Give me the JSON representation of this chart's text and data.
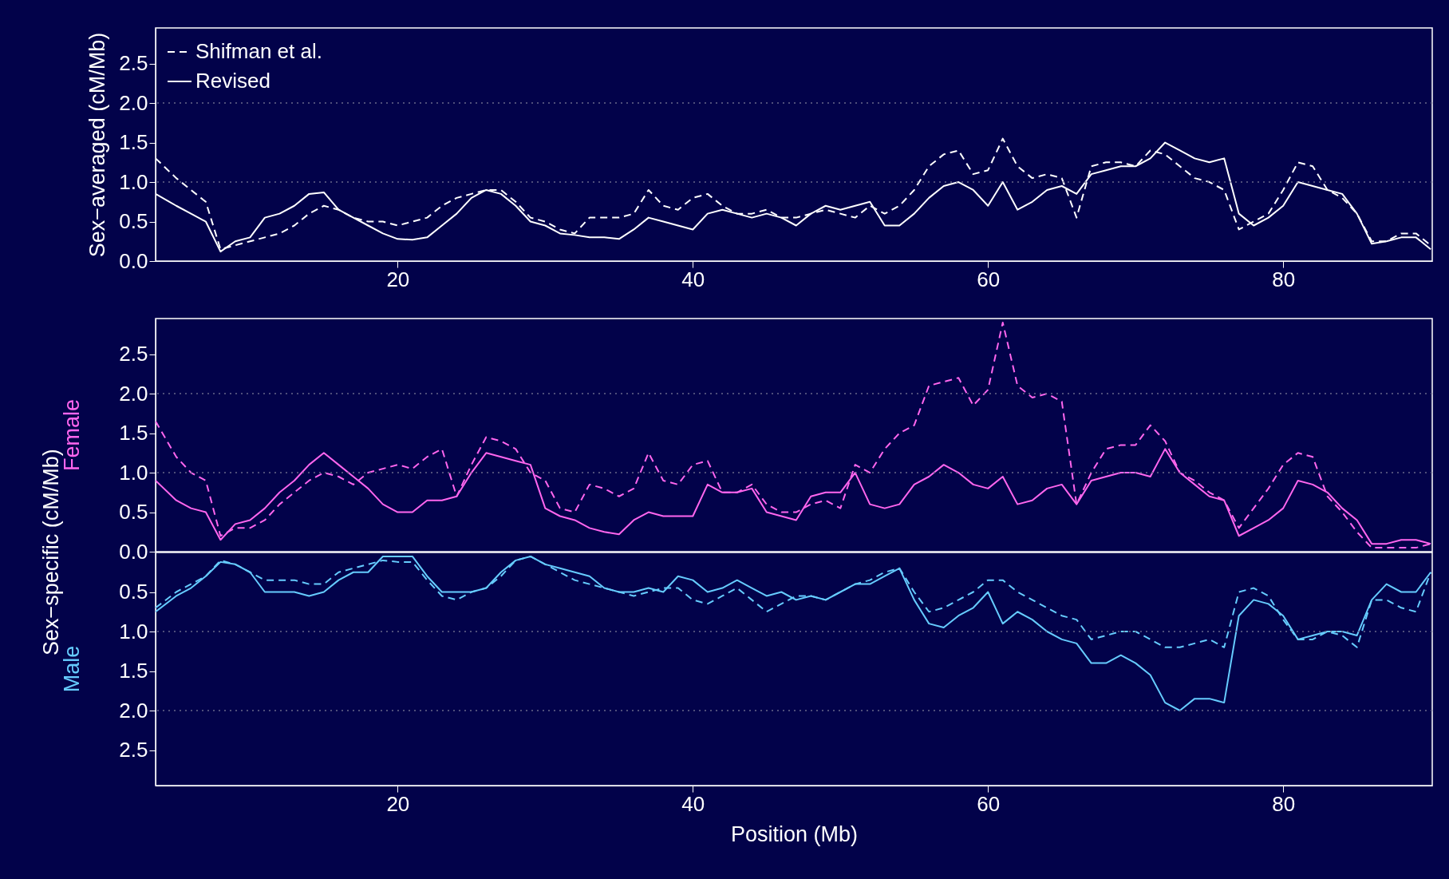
{
  "chart_data": [
    {
      "type": "line",
      "ylabel": "Sex−averaged (cM/Mb)",
      "legend": "top left",
      "xlim": [
        3.6,
        90.1
      ],
      "xticks": [
        20,
        40,
        60,
        80
      ],
      "ylim": [
        0,
        2.95
      ],
      "yticks": [
        {
          "value": 0,
          "label": "0.0"
        },
        0.5,
        {
          "value": 1,
          "label": "1.0"
        },
        1.5,
        {
          "value": 2,
          "label": "2.0"
        },
        2.5
      ],
      "ref_lines": [
        {
          "axis": "y",
          "value": 1,
          "line_style": "dotted",
          "color": "#6a6a8a"
        },
        {
          "axis": "y",
          "value": 2,
          "line_style": "dotted",
          "color": "#6a6a8a"
        }
      ],
      "x": [
        3.6,
        5,
        6,
        7,
        8,
        9,
        10,
        11,
        12,
        13,
        14,
        15,
        16,
        17,
        18,
        19,
        20,
        21,
        22,
        23,
        24,
        25,
        26,
        27,
        28,
        29,
        30,
        31,
        32,
        33,
        34,
        35,
        36,
        37,
        38,
        39,
        40,
        41,
        42,
        43,
        44,
        45,
        46,
        47,
        48,
        49,
        50,
        51,
        52,
        53,
        54,
        55,
        56,
        57,
        58,
        59,
        60,
        61,
        62,
        63,
        64,
        65,
        66,
        67,
        68,
        69,
        70,
        71,
        72,
        73,
        74,
        75,
        76,
        77,
        78,
        79,
        80,
        81,
        82,
        83,
        84,
        85,
        86,
        87,
        88,
        89,
        90
      ],
      "series": [
        {
          "name": "Shifman et al.",
          "color": "#ffffff",
          "line_style": "dashed",
          "values": [
            1.3,
            1.05,
            0.9,
            0.75,
            0.15,
            0.2,
            0.25,
            0.3,
            0.35,
            0.45,
            0.6,
            0.7,
            0.65,
            0.55,
            0.5,
            0.5,
            0.45,
            0.5,
            0.55,
            0.7,
            0.8,
            0.85,
            0.9,
            0.9,
            0.75,
            0.55,
            0.5,
            0.4,
            0.35,
            0.55,
            0.55,
            0.55,
            0.6,
            0.9,
            0.7,
            0.65,
            0.8,
            0.85,
            0.7,
            0.6,
            0.6,
            0.65,
            0.55,
            0.55,
            0.6,
            0.65,
            0.6,
            0.55,
            0.7,
            0.6,
            0.7,
            0.9,
            1.2,
            1.35,
            1.4,
            1.1,
            1.15,
            1.55,
            1.2,
            1.05,
            1.1,
            1.05,
            0.55,
            1.2,
            1.25,
            1.25,
            1.2,
            1.4,
            1.35,
            1.2,
            1.05,
            1.0,
            0.9,
            0.4,
            0.5,
            0.6,
            0.9,
            1.25,
            1.2,
            0.9,
            0.8,
            0.6,
            0.25,
            0.25,
            0.35,
            0.35,
            0.2
          ]
        },
        {
          "name": "Revised",
          "color": "#ffffff",
          "line_style": "solid",
          "values": [
            0.85,
            0.7,
            0.6,
            0.5,
            0.12,
            0.25,
            0.3,
            0.55,
            0.6,
            0.7,
            0.85,
            0.87,
            0.65,
            0.55,
            0.45,
            0.35,
            0.28,
            0.27,
            0.3,
            0.45,
            0.6,
            0.8,
            0.9,
            0.85,
            0.7,
            0.5,
            0.45,
            0.35,
            0.33,
            0.3,
            0.3,
            0.28,
            0.4,
            0.55,
            0.5,
            0.45,
            0.4,
            0.6,
            0.65,
            0.6,
            0.55,
            0.6,
            0.55,
            0.45,
            0.6,
            0.7,
            0.65,
            0.7,
            0.75,
            0.45,
            0.45,
            0.6,
            0.8,
            0.95,
            1.0,
            0.9,
            0.7,
            1.0,
            0.65,
            0.75,
            0.9,
            0.95,
            0.85,
            1.1,
            1.15,
            1.2,
            1.2,
            1.3,
            1.5,
            1.4,
            1.3,
            1.25,
            1.3,
            0.6,
            0.45,
            0.55,
            0.7,
            1.0,
            0.95,
            0.9,
            0.85,
            0.6,
            0.22,
            0.25,
            0.3,
            0.3,
            0.15
          ]
        }
      ]
    },
    {
      "type": "line",
      "ylabel": "Sex−specific (cM/Mb)",
      "annotations": [
        "Female"
      ],
      "tick_labels": "y",
      "xlim": [
        3.6,
        90.1
      ],
      "ylim": [
        0,
        2.95
      ],
      "yticks": [
        {
          "value": 0,
          "label": "0.0"
        },
        0.5,
        {
          "value": 1,
          "label": "1.0"
        },
        1.5,
        {
          "value": 2,
          "label": "2.0"
        },
        2.5
      ],
      "ref_lines": [
        {
          "axis": "y",
          "value": 1,
          "line_style": "dotted",
          "color": "#6a6a8a"
        },
        {
          "axis": "y",
          "value": 2,
          "line_style": "dotted",
          "color": "#6a6a8a"
        }
      ],
      "x": [
        3.6,
        5,
        6,
        7,
        8,
        9,
        10,
        11,
        12,
        13,
        14,
        15,
        16,
        17,
        18,
        19,
        20,
        21,
        22,
        23,
        24,
        25,
        26,
        27,
        28,
        29,
        30,
        31,
        32,
        33,
        34,
        35,
        36,
        37,
        38,
        39,
        40,
        41,
        42,
        43,
        44,
        45,
        46,
        47,
        48,
        49,
        50,
        51,
        52,
        53,
        54,
        55,
        56,
        57,
        58,
        59,
        60,
        61,
        62,
        63,
        64,
        65,
        66,
        67,
        68,
        69,
        70,
        71,
        72,
        73,
        74,
        75,
        76,
        77,
        78,
        79,
        80,
        81,
        82,
        83,
        84,
        85,
        86,
        87,
        88,
        89,
        90
      ],
      "series": [
        {
          "color": "#ff66ee",
          "line_style": "solid",
          "values": [
            0.9,
            0.65,
            0.55,
            0.5,
            0.15,
            0.35,
            0.4,
            0.55,
            0.75,
            0.9,
            1.1,
            1.25,
            1.1,
            0.95,
            0.8,
            0.6,
            0.5,
            0.5,
            0.65,
            0.65,
            0.7,
            1.0,
            1.25,
            1.2,
            1.15,
            1.1,
            0.55,
            0.45,
            0.4,
            0.3,
            0.25,
            0.22,
            0.4,
            0.5,
            0.45,
            0.45,
            0.45,
            0.85,
            0.75,
            0.75,
            0.8,
            0.5,
            0.45,
            0.4,
            0.7,
            0.75,
            0.75,
            1.0,
            0.6,
            0.55,
            0.6,
            0.85,
            0.95,
            1.1,
            1.0,
            0.85,
            0.8,
            0.95,
            0.6,
            0.65,
            0.8,
            0.85,
            0.6,
            0.9,
            0.95,
            1.0,
            1.0,
            0.95,
            1.3,
            1.0,
            0.85,
            0.7,
            0.65,
            0.2,
            0.3,
            0.4,
            0.55,
            0.9,
            0.85,
            0.75,
            0.55,
            0.4,
            0.1,
            0.1,
            0.15,
            0.15,
            0.1
          ]
        },
        {
          "color": "#ff66ee",
          "line_style": "dashed",
          "values": [
            1.65,
            1.2,
            1.0,
            0.9,
            0.2,
            0.3,
            0.3,
            0.4,
            0.6,
            0.75,
            0.9,
            1.0,
            0.95,
            0.85,
            1.0,
            1.05,
            1.1,
            1.05,
            1.2,
            1.3,
            0.7,
            1.1,
            1.45,
            1.4,
            1.3,
            1.0,
            0.9,
            0.55,
            0.5,
            0.85,
            0.8,
            0.7,
            0.8,
            1.25,
            0.9,
            0.85,
            1.1,
            1.15,
            0.75,
            0.75,
            0.85,
            0.6,
            0.5,
            0.5,
            0.6,
            0.65,
            0.55,
            1.1,
            1.0,
            1.3,
            1.5,
            1.6,
            2.1,
            2.15,
            2.2,
            1.85,
            2.05,
            2.9,
            2.1,
            1.95,
            2.0,
            1.9,
            0.6,
            1.0,
            1.3,
            1.35,
            1.35,
            1.6,
            1.4,
            1.0,
            0.9,
            0.75,
            0.65,
            0.3,
            0.55,
            0.8,
            1.1,
            1.25,
            1.2,
            0.7,
            0.5,
            0.25,
            0.05,
            0.05,
            0.05,
            0.05,
            0.1
          ]
        }
      ]
    },
    {
      "type": "line",
      "xlabel": "Position (Mb)",
      "annotations": [
        "Male"
      ],
      "xlim": [
        3.6,
        90.1
      ],
      "xticks": [
        20,
        40,
        60,
        80
      ],
      "ylim": [
        2.95,
        0
      ],
      "yticks": [
        0.5,
        {
          "value": 1,
          "label": "1.0"
        },
        1.5,
        {
          "value": 2,
          "label": "2.0"
        },
        2.5
      ],
      "ref_lines": [
        {
          "axis": "y",
          "value": 1,
          "line_style": "dotted",
          "color": "#6a6a8a"
        },
        {
          "axis": "y",
          "value": 2,
          "line_style": "dotted",
          "color": "#6a6a8a"
        }
      ],
      "x": [
        3.6,
        5,
        6,
        7,
        8,
        9,
        10,
        11,
        12,
        13,
        14,
        15,
        16,
        17,
        18,
        19,
        20,
        21,
        22,
        23,
        24,
        25,
        26,
        27,
        28,
        29,
        30,
        31,
        32,
        33,
        34,
        35,
        36,
        37,
        38,
        39,
        40,
        41,
        42,
        43,
        44,
        45,
        46,
        47,
        48,
        49,
        50,
        51,
        52,
        53,
        54,
        55,
        56,
        57,
        58,
        59,
        60,
        61,
        62,
        63,
        64,
        65,
        66,
        67,
        68,
        69,
        70,
        71,
        72,
        73,
        74,
        75,
        76,
        77,
        78,
        79,
        80,
        81,
        82,
        83,
        84,
        85,
        86,
        87,
        88,
        89,
        90
      ],
      "series": [
        {
          "color": "#66ccff",
          "line_style": "solid",
          "values": [
            0.75,
            0.55,
            0.45,
            0.3,
            0.12,
            0.15,
            0.25,
            0.5,
            0.5,
            0.5,
            0.55,
            0.5,
            0.35,
            0.25,
            0.25,
            0.05,
            0.05,
            0.05,
            0.3,
            0.5,
            0.5,
            0.5,
            0.45,
            0.25,
            0.1,
            0.05,
            0.15,
            0.2,
            0.25,
            0.3,
            0.45,
            0.5,
            0.5,
            0.45,
            0.5,
            0.3,
            0.35,
            0.5,
            0.45,
            0.35,
            0.45,
            0.55,
            0.5,
            0.6,
            0.55,
            0.6,
            0.5,
            0.4,
            0.4,
            0.3,
            0.2,
            0.6,
            0.9,
            0.95,
            0.8,
            0.7,
            0.5,
            0.9,
            0.75,
            0.85,
            1.0,
            1.1,
            1.15,
            1.4,
            1.4,
            1.3,
            1.4,
            1.55,
            1.9,
            2.0,
            1.85,
            1.85,
            1.9,
            0.8,
            0.6,
            0.65,
            0.8,
            1.1,
            1.05,
            1.0,
            1.0,
            1.05,
            0.6,
            0.4,
            0.5,
            0.5,
            0.25
          ]
        },
        {
          "color": "#66ccff",
          "line_style": "dashed",
          "values": [
            0.7,
            0.5,
            0.4,
            0.3,
            0.1,
            0.15,
            0.25,
            0.35,
            0.35,
            0.35,
            0.4,
            0.4,
            0.25,
            0.2,
            0.15,
            0.1,
            0.12,
            0.12,
            0.35,
            0.55,
            0.6,
            0.5,
            0.45,
            0.3,
            0.1,
            0.05,
            0.15,
            0.25,
            0.35,
            0.4,
            0.45,
            0.5,
            0.55,
            0.5,
            0.45,
            0.45,
            0.6,
            0.65,
            0.55,
            0.45,
            0.6,
            0.75,
            0.65,
            0.55,
            0.55,
            0.6,
            0.5,
            0.4,
            0.35,
            0.25,
            0.2,
            0.5,
            0.75,
            0.7,
            0.6,
            0.5,
            0.35,
            0.35,
            0.5,
            0.6,
            0.7,
            0.8,
            0.85,
            1.1,
            1.05,
            1.0,
            1.0,
            1.1,
            1.2,
            1.2,
            1.15,
            1.1,
            1.2,
            0.5,
            0.45,
            0.55,
            0.85,
            1.1,
            1.1,
            1.0,
            1.05,
            1.2,
            0.6,
            0.6,
            0.7,
            0.75,
            0.25
          ]
        }
      ]
    }
  ]
}
